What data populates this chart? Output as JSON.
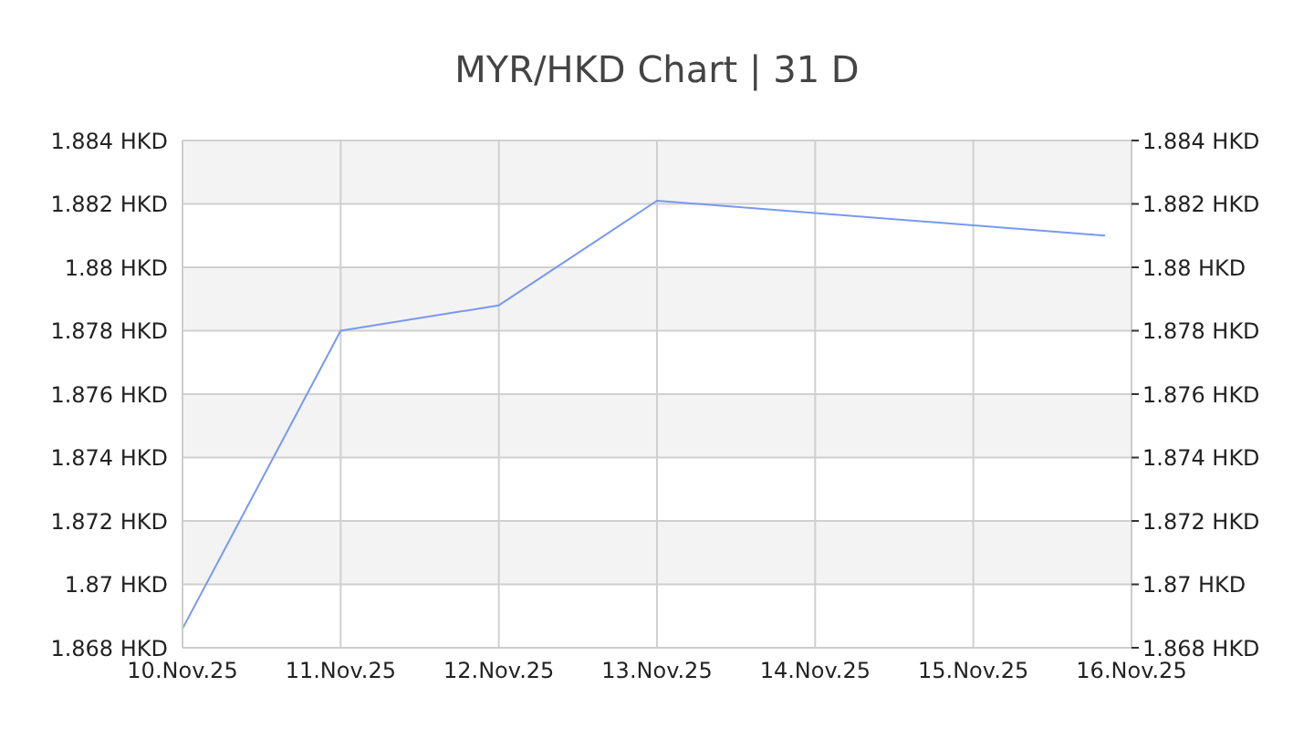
{
  "chart_data": {
    "type": "line",
    "title": "MYR/HKD Chart | 31 D",
    "x": [
      "--11-10",
      "--11-11",
      "--11-12",
      "--11-13",
      "--11-15T20:00"
    ],
    "series": [
      {
        "color": "#7799ee",
        "values": [
          1.8686,
          1.878,
          1.8788,
          1.8821,
          1.881
        ]
      }
    ],
    "xlim": [
      "--11-10",
      "--11-16"
    ],
    "xticks": [
      {
        "value": "--11-10",
        "label": "10.Nov.25"
      },
      {
        "value": "--11-11",
        "label": "11.Nov.25"
      },
      {
        "value": "--11-12",
        "label": "12.Nov.25"
      },
      {
        "value": "--11-13",
        "label": "13.Nov.25"
      },
      {
        "value": "--11-14",
        "label": "14.Nov.25"
      },
      {
        "value": "--11-15",
        "label": "15.Nov.25"
      },
      {
        "value": "--11-16",
        "label": "16.Nov.25"
      }
    ],
    "ylim": [
      1.868,
      1.884
    ],
    "yticks": [
      {
        "value": 1.868,
        "label": "1.868 HKD"
      },
      {
        "value": 1.87,
        "label": "1.87 HKD"
      },
      {
        "value": 1.872,
        "label": "1.872 HKD"
      },
      {
        "value": 1.874,
        "label": "1.874 HKD"
      },
      {
        "value": 1.876,
        "label": "1.876 HKD"
      },
      {
        "value": 1.878,
        "label": "1.878 HKD"
      },
      {
        "value": 1.88,
        "label": "1.88 HKD"
      },
      {
        "value": 1.882,
        "label": "1.882 HKD"
      },
      {
        "value": 1.884,
        "label": "1.884 HKD"
      }
    ],
    "y2lim": [
      1.868,
      1.884
    ],
    "y2ticks": [
      {
        "value": 1.868,
        "label": "1.868 HKD"
      },
      {
        "value": 1.87,
        "label": "1.87 HKD"
      },
      {
        "value": 1.872,
        "label": "1.872 HKD"
      },
      {
        "value": 1.874,
        "label": "1.874 HKD"
      },
      {
        "value": 1.876,
        "label": "1.876 HKD"
      },
      {
        "value": 1.878,
        "label": "1.878 HKD"
      },
      {
        "value": 1.88,
        "label": "1.88 HKD"
      },
      {
        "value": 1.882,
        "label": "1.882 HKD"
      },
      {
        "value": 1.884,
        "label": "1.884 HKD"
      }
    ],
    "grid": true,
    "marker": "none",
    "line_style": "solid",
    "legend": false
  }
}
